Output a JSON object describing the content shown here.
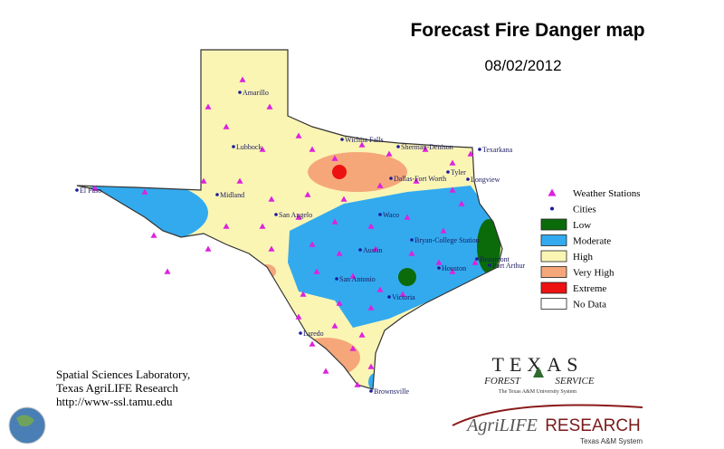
{
  "title": "Forecast Fire Danger map",
  "date": "08/02/2012",
  "legend": [
    {
      "label": "Weather Stations"
    },
    {
      "label": "Cities"
    },
    {
      "label": "Low",
      "color": "#0b6b0b"
    },
    {
      "label": "Moderate",
      "color": "#33aaee"
    },
    {
      "label": "High",
      "color": "#fbf5b4"
    },
    {
      "label": "Very High",
      "color": "#f5a77a"
    },
    {
      "label": "Extreme",
      "color": "#ee1111"
    },
    {
      "label": "No Data",
      "color": "#ffffff"
    }
  ],
  "cities": [
    "Amarillo",
    "Lubbock",
    "Wichita Falls",
    "Sherman-Denison",
    "Texarkana",
    "El Paso",
    "Midland",
    "Dallas-Fort Worth",
    "Tyler",
    "Longview",
    "San Angelo",
    "Waco",
    "Bryan-College Station",
    "Austin",
    "Beaumont",
    "Port Arthur",
    "Houston",
    "San Antonio",
    "Victoria",
    "Laredo",
    "Brownsville"
  ],
  "credits": [
    "Spatial Sciences Laboratory,",
    "Texas AgriLIFE Research",
    "http://www-ssl.tamu.edu"
  ],
  "logos": {
    "texas": "TEXAS",
    "forest": "FOREST",
    "service": "SERVICE",
    "tamus": "The Texas A&M University System",
    "agrilife": "AgriLIFE",
    "research": "RESEARCH",
    "system": "Texas A&M System"
  }
}
